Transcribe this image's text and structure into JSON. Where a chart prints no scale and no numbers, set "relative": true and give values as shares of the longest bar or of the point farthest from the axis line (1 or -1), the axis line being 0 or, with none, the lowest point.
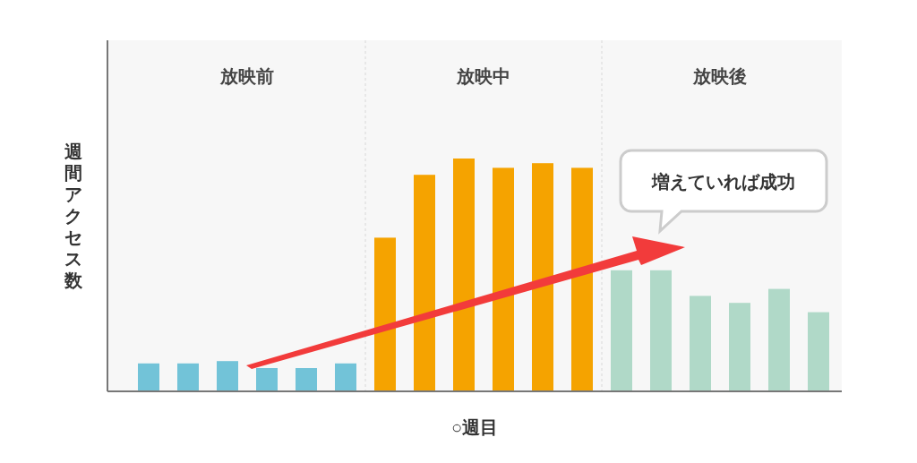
{
  "chart_data": {
    "type": "bar",
    "relative": true,
    "xlabel": "○週目",
    "ylabel": "週間アクセス数",
    "categories": [
      null,
      null,
      null,
      null,
      null,
      null,
      null,
      null,
      null,
      null,
      null,
      null,
      null,
      null,
      null,
      null,
      null,
      null
    ],
    "values": [
      0.12,
      0.12,
      0.13,
      0.1,
      0.1,
      0.12,
      0.66,
      0.93,
      1,
      0.96,
      0.98,
      0.96,
      0.52,
      0.52,
      0.41,
      0.38,
      0.44,
      0.34
    ],
    "colors": [
      "#72c3d8",
      "#72c3d8",
      "#72c3d8",
      "#72c3d8",
      "#72c3d8",
      "#72c3d8",
      "#f5a300",
      "#f5a300",
      "#f5a300",
      "#f5a300",
      "#f5a300",
      "#f5a300",
      "#b0d9c8",
      "#b0d9c8",
      "#b0d9c8",
      "#b0d9c8",
      "#b0d9c8",
      "#b0d9c8"
    ],
    "annotations": [
      "放映前",
      "放映中",
      "放映後",
      "増えていれば成功"
    ]
  }
}
